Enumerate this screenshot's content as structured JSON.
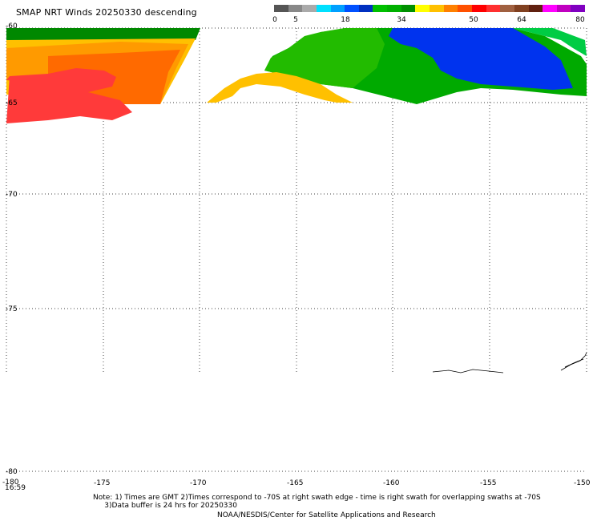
{
  "header": {
    "title": "SMAP NRT Winds  20250330 descending"
  },
  "colorbar": {
    "ticks": [
      "0",
      "5",
      "18",
      "34",
      "50",
      "64",
      "80"
    ],
    "colors": [
      "#555555",
      "#888888",
      "#aaaaaa",
      "#00e0ff",
      "#00a0ff",
      "#0050ff",
      "#0030c0",
      "#00c000",
      "#00b000",
      "#009000",
      "#ffff00",
      "#ffc000",
      "#ff8000",
      "#ff5000",
      "#ff0000",
      "#ff3030",
      "#a06040",
      "#804020",
      "#602010",
      "#ff00ff",
      "#c000c0",
      "#8000c0"
    ]
  },
  "map": {
    "lon_ticks": [
      "-180",
      "-175",
      "-170",
      "-165",
      "-160",
      "-155",
      "-150"
    ],
    "lat_ticks": [
      "-60",
      "-65",
      "-70",
      "-75",
      "-80"
    ],
    "time_label": "16:59"
  },
  "notes": {
    "line1": "Note: 1) Times are GMT 2)Times correspond to -70S at right swath edge - time is right swath for overlapping swaths at -70S",
    "line2": "     3)Data buffer is 24 hrs for 20250330",
    "credit": "NOAA/NESDIS/Center for Satellite Applications and Research"
  }
}
